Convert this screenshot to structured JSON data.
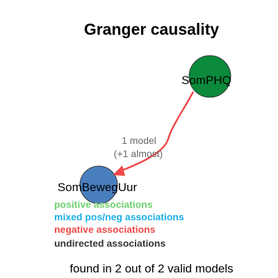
{
  "title": "Granger causality",
  "nodes": [
    {
      "id": "n1",
      "label": "SomPHQ",
      "color": "#0b8a3c"
    },
    {
      "id": "n2",
      "label": "SomBewegUur",
      "color": "#4a7fbf"
    }
  ],
  "edge": {
    "from": "SomPHQ",
    "to": "SomBewegUur",
    "color": "#f04848",
    "label_line1": "1 model",
    "label_line2": "(+1 almost)"
  },
  "legend": [
    {
      "label": "positive associations",
      "color": "#6fcf6f"
    },
    {
      "label": "mixed pos/neg associations",
      "color": "#1aaee8"
    },
    {
      "label": "negative associations",
      "color": "#f04848"
    },
    {
      "label": "undirected associations",
      "color": "#333333"
    }
  ],
  "footer": "found in 2 out of 2 valid models"
}
